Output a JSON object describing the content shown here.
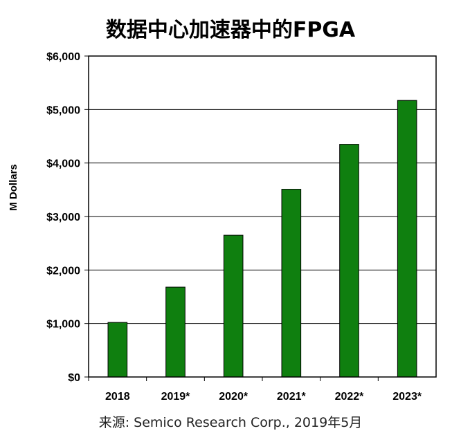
{
  "chart_data": {
    "type": "bar",
    "title": "数据中心加速器中的FPGA",
    "ylabel": "M Dollars",
    "xlabel": "",
    "categories": [
      "2018",
      "2019*",
      "2020*",
      "2021*",
      "2022*",
      "2023*"
    ],
    "values": [
      1020,
      1680,
      2650,
      3510,
      4350,
      5170
    ],
    "ylim": [
      0,
      6000
    ],
    "yticks": [
      0,
      1000,
      2000,
      3000,
      4000,
      5000,
      6000
    ],
    "ytick_labels": [
      "$0",
      "$1,000",
      "$2,000",
      "$3,000",
      "$4,000",
      "$5,000",
      "$6,000"
    ],
    "grid": true,
    "bar_color": "#0f7f0f",
    "bar_edge_color": "#000000",
    "source": "来源: Semico Research Corp., 2019年5月"
  }
}
